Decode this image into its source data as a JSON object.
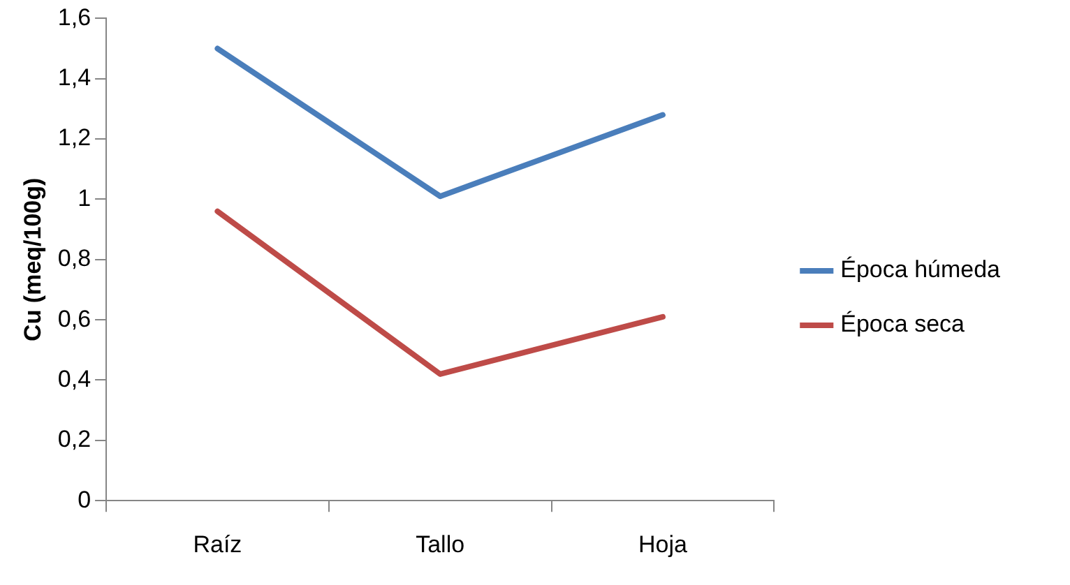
{
  "chart_data": {
    "type": "line",
    "ylabel": "Cu (meq/100g)",
    "categories": [
      "Raíz",
      "Tallo",
      "Hoja"
    ],
    "series": [
      {
        "name": "Época húmeda",
        "color": "#4a7ebb",
        "values": [
          1.5,
          1.01,
          1.28
        ]
      },
      {
        "name": "Época seca",
        "color": "#be4b48",
        "values": [
          0.96,
          0.42,
          0.61
        ]
      }
    ],
    "ylim": [
      0,
      1.6
    ],
    "yticks": [
      0,
      {
        "value": 0.2,
        "label": "0,2"
      },
      {
        "value": 0.4,
        "label": "0,4"
      },
      {
        "value": 0.6,
        "label": "0,6"
      },
      {
        "value": 0.8,
        "label": "0,8"
      },
      1,
      {
        "value": 1.2,
        "label": "1,2"
      },
      {
        "value": 1.4,
        "label": "1,4"
      },
      {
        "value": 1.6,
        "label": "1,6"
      }
    ],
    "grid": false,
    "legend": "right",
    "marker": "none",
    "line_style": "solid"
  }
}
